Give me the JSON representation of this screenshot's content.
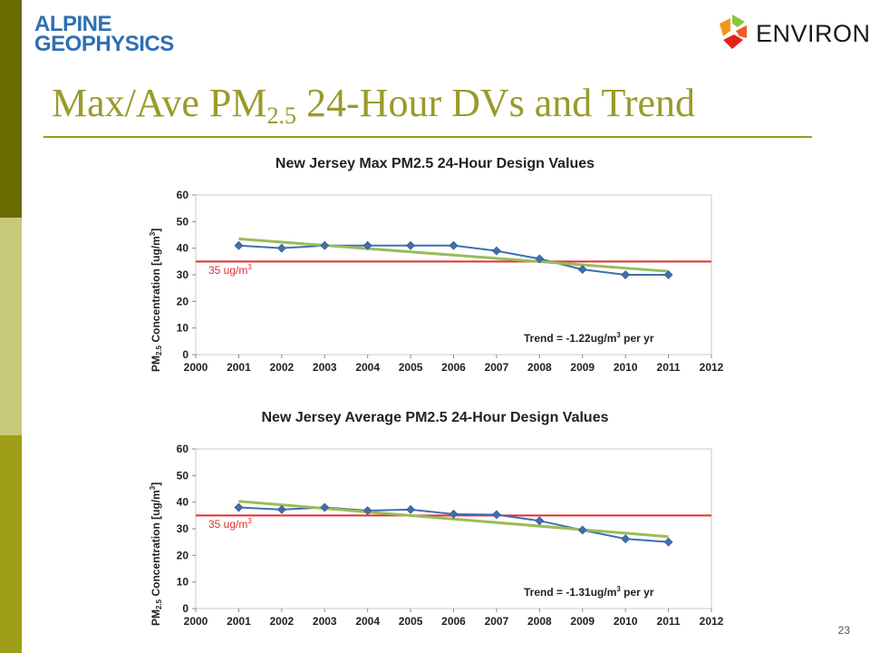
{
  "logos": {
    "left_line1": "ALPINE",
    "left_line2": "GEOPHYSICS",
    "right": "ENVIRON"
  },
  "slide": {
    "title_main": "Max/Ave PM",
    "title_sub": "2.5",
    "title_rest": " 24-Hour DVs and Trend",
    "page_number": "23"
  },
  "colors": {
    "series": "#3f6fae",
    "trend": "#9bbb59",
    "reference": "#e32d2d",
    "title": "#9a9a2a"
  },
  "chart_data": [
    {
      "type": "line",
      "title": "New Jersey Max PM2.5 24-Hour Design Values",
      "ylabel_main": "PM",
      "ylabel_sub": "2.5",
      "ylabel_rest": " Concentration [ug/m",
      "ylabel_sup": "3",
      "ylabel_end": "]",
      "xlim": [
        2000,
        2012
      ],
      "ylim": [
        0,
        60
      ],
      "x_ticks": [
        2000,
        2001,
        2002,
        2003,
        2004,
        2005,
        2006,
        2007,
        2008,
        2009,
        2010,
        2011,
        2012
      ],
      "y_ticks": [
        0,
        10,
        20,
        30,
        40,
        50,
        60
      ],
      "series": [
        {
          "x": [
            2001,
            2002,
            2003,
            2004,
            2005,
            2006,
            2007,
            2008,
            2009,
            2010,
            2011
          ],
          "values": [
            41,
            40,
            41,
            41,
            41,
            41,
            39,
            36,
            32,
            30,
            30
          ]
        }
      ],
      "trend_line": {
        "x": [
          2001,
          2011
        ],
        "y": [
          43.5,
          31.3
        ]
      },
      "reference_line": {
        "y": 35,
        "label_main": "35 ug/m",
        "label_sup": "3"
      },
      "trend_annotation": {
        "prefix": "Trend = ",
        "value": "-1.22",
        "unit_main": "ug/m",
        "unit_sup": "3",
        "unit_end": " per yr"
      },
      "grid": false,
      "legend": "none"
    },
    {
      "type": "line",
      "title": "New Jersey Average PM2.5 24-Hour Design Values",
      "ylabel_main": "PM",
      "ylabel_sub": "2.5",
      "ylabel_rest": " Concentration [ug/m",
      "ylabel_sup": "3",
      "ylabel_end": "]",
      "xlim": [
        2000,
        2012
      ],
      "ylim": [
        0,
        60
      ],
      "x_ticks": [
        2000,
        2001,
        2002,
        2003,
        2004,
        2005,
        2006,
        2007,
        2008,
        2009,
        2010,
        2011,
        2012
      ],
      "y_ticks": [
        0,
        10,
        20,
        30,
        40,
        50,
        60
      ],
      "series": [
        {
          "x": [
            2001,
            2002,
            2003,
            2004,
            2005,
            2006,
            2007,
            2008,
            2009,
            2010,
            2011
          ],
          "values": [
            38,
            37.2,
            38,
            36.8,
            37.2,
            35.5,
            35.3,
            33,
            29.5,
            26.2,
            25
          ]
        }
      ],
      "trend_line": {
        "x": [
          2001,
          2011
        ],
        "y": [
          40.3,
          27
        ]
      },
      "reference_line": {
        "y": 35,
        "label_main": "35 ug/m",
        "label_sup": "3"
      },
      "trend_annotation": {
        "prefix": "Trend = ",
        "value": "-1.31",
        "unit_main": "ug/m",
        "unit_sup": "3",
        "unit_end": " per yr"
      },
      "grid": false,
      "legend": "none"
    }
  ]
}
